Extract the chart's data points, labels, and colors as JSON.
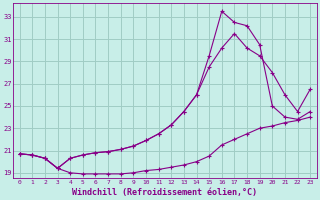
{
  "background_color": "#c8eee8",
  "grid_color": "#a0ccc4",
  "line_color": "#880088",
  "xlabel": "Windchill (Refroidissement éolien,°C)",
  "xlim": [
    -0.5,
    23.5
  ],
  "ylim": [
    18.5,
    34.2
  ],
  "yticks": [
    19,
    21,
    23,
    25,
    27,
    29,
    31,
    33
  ],
  "xticks": [
    0,
    1,
    2,
    3,
    4,
    5,
    6,
    7,
    8,
    9,
    10,
    11,
    12,
    13,
    14,
    15,
    16,
    17,
    18,
    19,
    20,
    21,
    22,
    23
  ],
  "line1_x": [
    0,
    1,
    2,
    3,
    4,
    5,
    6,
    7,
    8,
    9,
    10,
    11,
    12,
    13,
    14,
    15,
    16,
    17,
    18,
    19,
    20,
    21,
    22,
    23
  ],
  "line1_y": [
    20.7,
    20.6,
    20.3,
    19.4,
    19.0,
    18.9,
    18.9,
    18.9,
    18.9,
    19.0,
    19.2,
    19.3,
    19.5,
    19.7,
    20.0,
    20.5,
    21.5,
    22.0,
    22.5,
    23.0,
    23.2,
    23.5,
    23.7,
    24.0
  ],
  "line2_x": [
    0,
    1,
    2,
    3,
    4,
    5,
    6,
    7,
    8,
    9,
    10,
    11,
    12,
    13,
    14,
    15,
    16,
    17,
    18,
    19,
    20,
    21,
    22,
    23
  ],
  "line2_y": [
    20.7,
    20.6,
    20.3,
    19.4,
    20.3,
    20.6,
    20.8,
    20.9,
    21.1,
    21.4,
    21.9,
    22.5,
    23.3,
    24.5,
    26.0,
    28.5,
    30.2,
    31.5,
    30.2,
    29.5,
    28.0,
    26.0,
    24.5,
    26.5
  ],
  "line3_x": [
    0,
    1,
    2,
    3,
    4,
    5,
    6,
    7,
    8,
    9,
    10,
    11,
    12,
    13,
    14,
    15,
    16,
    17,
    18,
    19,
    20,
    21,
    22,
    23
  ],
  "line3_y": [
    20.7,
    20.6,
    20.3,
    19.4,
    20.3,
    20.6,
    20.8,
    20.9,
    21.1,
    21.4,
    21.9,
    22.5,
    23.3,
    24.5,
    26.0,
    29.5,
    33.5,
    32.5,
    32.2,
    30.5,
    25.0,
    24.0,
    23.8,
    24.5
  ]
}
